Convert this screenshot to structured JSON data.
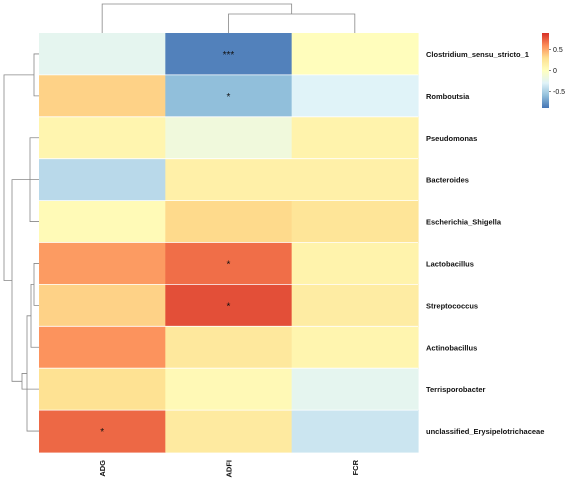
{
  "chart_data": {
    "type": "heatmap",
    "title": "",
    "rows": [
      "Clostridium_sensu_stricto_1",
      "Romboutsia",
      "Pseudomonas",
      "Bacteroides",
      "Escherichia_Shigella",
      "Lactobacillus",
      "Streptococcus",
      "Actinobacillus",
      "Terrisporobacter",
      "unclassified_Erysipelotrichaceae"
    ],
    "columns": [
      "ADG",
      "ADFI",
      "FCR"
    ],
    "values": [
      [
        -0.25,
        -0.85,
        0.02
      ],
      [
        0.35,
        -0.6,
        -0.3
      ],
      [
        0.1,
        -0.15,
        0.12
      ],
      [
        -0.45,
        0.15,
        0.15
      ],
      [
        0.05,
        0.32,
        0.25
      ],
      [
        0.55,
        0.7,
        0.12
      ],
      [
        0.35,
        0.8,
        0.18
      ],
      [
        0.58,
        0.22,
        0.1
      ],
      [
        0.28,
        0.06,
        -0.25
      ],
      [
        0.72,
        0.2,
        -0.38
      ]
    ],
    "significance": [
      [
        "",
        "***",
        ""
      ],
      [
        "",
        "*",
        ""
      ],
      [
        "",
        "",
        ""
      ],
      [
        "",
        "",
        ""
      ],
      [
        "",
        "",
        ""
      ],
      [
        "",
        "*",
        ""
      ],
      [
        "",
        "*",
        ""
      ],
      [
        "",
        "",
        ""
      ],
      [
        "",
        "",
        ""
      ],
      [
        "*",
        "",
        ""
      ]
    ],
    "colorbar": {
      "min": -0.9,
      "max": 0.9,
      "ticks": [
        0.5,
        0,
        -0.5
      ],
      "tick_labels": [
        "0.5",
        "0",
        "-0.5"
      ]
    },
    "colormap": [
      "#4575b4",
      "#91bfdb",
      "#e0f3f8",
      "#ffffbf",
      "#fee090",
      "#fc8d59",
      "#d73027"
    ]
  }
}
